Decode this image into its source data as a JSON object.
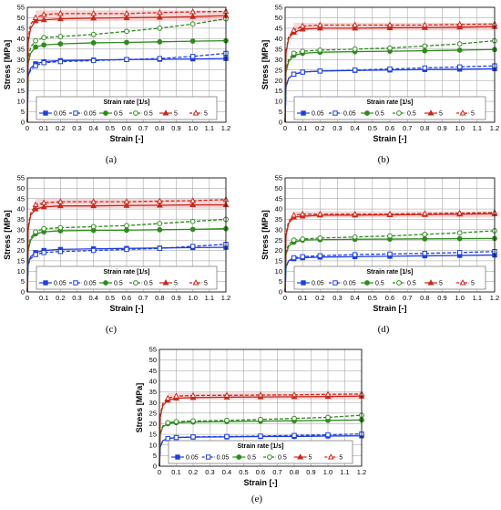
{
  "colors": {
    "blue": "#1f3fe0",
    "green": "#2e8b1e",
    "red": "#c9281c",
    "red_band": "#f3b8b8",
    "grid": "#9a9a9a"
  },
  "legend_labels": [
    "0.05",
    "0.05",
    "0.5",
    "0.5",
    "5",
    "5"
  ],
  "chart_data": [
    {
      "type": "line",
      "panel_label": "(a)",
      "xlabel": "Strain [-]",
      "ylabel": "Stress [MPa]",
      "xlim": [
        0,
        1.2
      ],
      "ylim": [
        0,
        55
      ],
      "grid": true,
      "legend_title": "Strain rate [1/s]",
      "legend_position": "bottom",
      "series": [
        {
          "name": "0.05",
          "color": "blue",
          "marker": "square",
          "filled": true,
          "dashed": false,
          "x": [
            0,
            0.005,
            0.02,
            0.05,
            0.1,
            0.2,
            0.4,
            0.6,
            0.8,
            1.0,
            1.2
          ],
          "y": [
            0,
            22,
            26,
            28,
            29,
            29.5,
            29.8,
            30,
            30.1,
            30.3,
            30.5
          ]
        },
        {
          "name": "0.05",
          "color": "blue",
          "marker": "square",
          "filled": false,
          "dashed": true,
          "x": [
            0,
            0.005,
            0.02,
            0.05,
            0.1,
            0.2,
            0.4,
            0.6,
            0.8,
            1.0,
            1.2
          ],
          "y": [
            0,
            22,
            25,
            27,
            28.5,
            29,
            29.5,
            30,
            30.5,
            31.5,
            33
          ]
        },
        {
          "name": "0.5",
          "color": "green",
          "marker": "circle",
          "filled": true,
          "dashed": false,
          "x": [
            0,
            0.005,
            0.02,
            0.05,
            0.1,
            0.2,
            0.4,
            0.6,
            0.8,
            1.0,
            1.2
          ],
          "y": [
            0,
            28,
            33,
            36,
            37,
            37.5,
            38,
            38.2,
            38.5,
            38.8,
            39
          ]
        },
        {
          "name": "0.5",
          "color": "green",
          "marker": "circle",
          "filled": false,
          "dashed": true,
          "x": [
            0,
            0.005,
            0.02,
            0.05,
            0.1,
            0.2,
            0.4,
            0.6,
            0.8,
            1.0,
            1.2
          ],
          "y": [
            0,
            30,
            36,
            39,
            40.5,
            41,
            42,
            43.5,
            45,
            47,
            49.5
          ]
        },
        {
          "name": "5",
          "color": "red",
          "marker": "triangle",
          "filled": true,
          "dashed": false,
          "x": [
            0,
            0.005,
            0.02,
            0.05,
            0.1,
            0.2,
            0.4,
            0.6,
            0.8,
            1.0,
            1.2
          ],
          "y": [
            0,
            38,
            45,
            48.5,
            49,
            49.5,
            49.8,
            50,
            50.2,
            50.5,
            51
          ]
        },
        {
          "name": "5",
          "color": "red",
          "marker": "triangle",
          "filled": false,
          "dashed": true,
          "x": [
            0,
            0.005,
            0.02,
            0.05,
            0.1,
            0.2,
            0.4,
            0.6,
            0.8,
            1.0,
            1.2
          ],
          "y": [
            0,
            40,
            47,
            50,
            51.5,
            52,
            52,
            52,
            52.5,
            52.8,
            53
          ]
        }
      ]
    },
    {
      "type": "line",
      "panel_label": "(b)",
      "xlabel": "Strain [-]",
      "ylabel": "Stress [MPa]",
      "xlim": [
        0,
        1.2
      ],
      "ylim": [
        0,
        55
      ],
      "grid": true,
      "legend_title": "Strain rate [1/s]",
      "legend_position": "bottom",
      "series": [
        {
          "name": "0.05",
          "color": "blue",
          "marker": "square",
          "filled": true,
          "dashed": false,
          "x": [
            0,
            0.005,
            0.02,
            0.05,
            0.1,
            0.2,
            0.4,
            0.6,
            0.8,
            1.0,
            1.2
          ],
          "y": [
            0,
            17,
            21,
            23,
            24,
            24.5,
            24.8,
            25,
            25.2,
            25.4,
            25.6
          ]
        },
        {
          "name": "0.05",
          "color": "blue",
          "marker": "square",
          "filled": false,
          "dashed": true,
          "x": [
            0,
            0.005,
            0.02,
            0.05,
            0.1,
            0.2,
            0.4,
            0.6,
            0.8,
            1.0,
            1.2
          ],
          "y": [
            0,
            17,
            21,
            23,
            24,
            24.5,
            25,
            25.5,
            26,
            26.5,
            27
          ]
        },
        {
          "name": "0.5",
          "color": "green",
          "marker": "circle",
          "filled": true,
          "dashed": false,
          "x": [
            0,
            0.005,
            0.02,
            0.05,
            0.1,
            0.2,
            0.4,
            0.6,
            0.8,
            1.0,
            1.2
          ],
          "y": [
            0,
            24,
            29,
            32,
            33,
            33.5,
            33.8,
            34,
            34.2,
            34.5,
            34.8
          ]
        },
        {
          "name": "0.5",
          "color": "green",
          "marker": "circle",
          "filled": false,
          "dashed": true,
          "x": [
            0,
            0.005,
            0.02,
            0.05,
            0.1,
            0.2,
            0.4,
            0.6,
            0.8,
            1.0,
            1.2
          ],
          "y": [
            0,
            25,
            30,
            33,
            34,
            34.5,
            35,
            35.5,
            36.5,
            37.5,
            39
          ]
        },
        {
          "name": "5",
          "color": "red",
          "marker": "triangle",
          "filled": true,
          "dashed": false,
          "x": [
            0,
            0.005,
            0.02,
            0.05,
            0.1,
            0.2,
            0.4,
            0.6,
            0.8,
            1.0,
            1.2
          ],
          "y": [
            0,
            33,
            40,
            43,
            44.5,
            45,
            45,
            45.2,
            45.3,
            45.5,
            45.8
          ]
        },
        {
          "name": "5",
          "color": "red",
          "marker": "triangle",
          "filled": false,
          "dashed": true,
          "x": [
            0,
            0.005,
            0.02,
            0.05,
            0.1,
            0.2,
            0.4,
            0.6,
            0.8,
            1.0,
            1.2
          ],
          "y": [
            0,
            34,
            41,
            44,
            46,
            46.5,
            46.5,
            46.5,
            46.5,
            46.8,
            47
          ]
        }
      ]
    },
    {
      "type": "line",
      "panel_label": "(c)",
      "xlabel": "Strain [-]",
      "ylabel": "Stress [MPa]",
      "xlim": [
        0,
        1.2
      ],
      "ylim": [
        0,
        55
      ],
      "grid": true,
      "legend_title": "Strain rate [1/s]",
      "legend_position": "bottom",
      "series": [
        {
          "name": "0.05",
          "color": "blue",
          "marker": "square",
          "filled": true,
          "dashed": false,
          "x": [
            0,
            0.005,
            0.02,
            0.05,
            0.1,
            0.2,
            0.4,
            0.6,
            0.8,
            1.0,
            1.2
          ],
          "y": [
            0,
            14,
            17,
            19,
            20,
            20.5,
            20.8,
            21,
            21.2,
            21.4,
            21.5
          ]
        },
        {
          "name": "0.05",
          "color": "blue",
          "marker": "square",
          "filled": false,
          "dashed": true,
          "x": [
            0,
            0.005,
            0.02,
            0.05,
            0.1,
            0.2,
            0.4,
            0.6,
            0.8,
            1.0,
            1.2
          ],
          "y": [
            0,
            13,
            16,
            18,
            19,
            19.5,
            20,
            20.5,
            21,
            22,
            23
          ]
        },
        {
          "name": "0.5",
          "color": "green",
          "marker": "circle",
          "filled": true,
          "dashed": false,
          "x": [
            0,
            0.005,
            0.02,
            0.05,
            0.1,
            0.2,
            0.4,
            0.6,
            0.8,
            1.0,
            1.2
          ],
          "y": [
            0,
            20,
            25,
            28,
            29,
            29.5,
            29.7,
            29.8,
            30,
            30.2,
            30.5
          ]
        },
        {
          "name": "0.5",
          "color": "green",
          "marker": "circle",
          "filled": false,
          "dashed": true,
          "x": [
            0,
            0.005,
            0.02,
            0.05,
            0.1,
            0.2,
            0.4,
            0.6,
            0.8,
            1.0,
            1.2
          ],
          "y": [
            0,
            21,
            26,
            29,
            30.5,
            31,
            31.5,
            32,
            33,
            34,
            35
          ]
        },
        {
          "name": "5",
          "color": "red",
          "marker": "triangle",
          "filled": true,
          "dashed": false,
          "x": [
            0,
            0.005,
            0.02,
            0.05,
            0.1,
            0.2,
            0.4,
            0.6,
            0.8,
            1.0,
            1.2
          ],
          "y": [
            0,
            30,
            37,
            40,
            41,
            41.5,
            41.5,
            41.7,
            41.8,
            42,
            42
          ]
        },
        {
          "name": "5",
          "color": "red",
          "marker": "triangle",
          "filled": false,
          "dashed": true,
          "x": [
            0,
            0.005,
            0.02,
            0.05,
            0.1,
            0.2,
            0.4,
            0.6,
            0.8,
            1.0,
            1.2
          ],
          "y": [
            0,
            31,
            38,
            42,
            43,
            43.5,
            43.5,
            43.5,
            43.8,
            44,
            44.5
          ]
        }
      ]
    },
    {
      "type": "line",
      "panel_label": "(d)",
      "xlabel": "Strain [-]",
      "ylabel": "Stress [MPa]",
      "xlim": [
        0,
        1.2
      ],
      "ylim": [
        0,
        55
      ],
      "grid": true,
      "legend_title": "Strain rate [1/s]",
      "legend_position": "bottom",
      "series": [
        {
          "name": "0.05",
          "color": "blue",
          "marker": "square",
          "filled": true,
          "dashed": false,
          "x": [
            0,
            0.005,
            0.02,
            0.05,
            0.1,
            0.2,
            0.4,
            0.6,
            0.8,
            1.0,
            1.2
          ],
          "y": [
            0,
            12,
            15,
            16,
            16.5,
            16.8,
            17,
            17.2,
            17.4,
            17.6,
            17.8
          ]
        },
        {
          "name": "0.05",
          "color": "blue",
          "marker": "square",
          "filled": false,
          "dashed": true,
          "x": [
            0,
            0.005,
            0.02,
            0.05,
            0.1,
            0.2,
            0.4,
            0.6,
            0.8,
            1.0,
            1.2
          ],
          "y": [
            0,
            12,
            15,
            16.5,
            17,
            17.5,
            18,
            18.3,
            18.6,
            19,
            19.5
          ]
        },
        {
          "name": "0.5",
          "color": "green",
          "marker": "circle",
          "filled": true,
          "dashed": false,
          "x": [
            0,
            0.005,
            0.02,
            0.05,
            0.1,
            0.2,
            0.4,
            0.6,
            0.8,
            1.0,
            1.2
          ],
          "y": [
            0,
            18,
            22,
            24,
            25,
            25.2,
            25.4,
            25.5,
            25.6,
            25.7,
            25.8
          ]
        },
        {
          "name": "0.5",
          "color": "green",
          "marker": "circle",
          "filled": false,
          "dashed": true,
          "x": [
            0,
            0.005,
            0.02,
            0.05,
            0.1,
            0.2,
            0.4,
            0.6,
            0.8,
            1.0,
            1.2
          ],
          "y": [
            0,
            19,
            23,
            25,
            25.5,
            26,
            26.5,
            27,
            27.8,
            28.5,
            29.5
          ]
        },
        {
          "name": "5",
          "color": "red",
          "marker": "triangle",
          "filled": true,
          "dashed": false,
          "x": [
            0,
            0.005,
            0.02,
            0.05,
            0.1,
            0.2,
            0.4,
            0.6,
            0.8,
            1.0,
            1.2
          ],
          "y": [
            0,
            27,
            33,
            36,
            36.5,
            37,
            37,
            37.2,
            37.3,
            37.5,
            37.7
          ]
        },
        {
          "name": "5",
          "color": "red",
          "marker": "triangle",
          "filled": false,
          "dashed": true,
          "x": [
            0,
            0.005,
            0.02,
            0.05,
            0.1,
            0.2,
            0.4,
            0.6,
            0.8,
            1.0,
            1.2
          ],
          "y": [
            0,
            28,
            34,
            37,
            37.5,
            37.5,
            37.5,
            37.5,
            37.8,
            38,
            38.3
          ]
        }
      ]
    },
    {
      "type": "line",
      "panel_label": "(e)",
      "xlabel": "Strain [-]",
      "ylabel": "Stress [MPa]",
      "xlim": [
        0,
        1.2
      ],
      "ylim": [
        0,
        55
      ],
      "grid": true,
      "legend_title": "Strain rate [1/s]",
      "legend_position": "bottom",
      "series": [
        {
          "name": "0.05",
          "color": "blue",
          "marker": "square",
          "filled": true,
          "dashed": false,
          "x": [
            0,
            0.005,
            0.02,
            0.05,
            0.1,
            0.2,
            0.4,
            0.6,
            0.8,
            1.0,
            1.2
          ],
          "y": [
            0,
            9,
            12,
            13,
            13.5,
            13.7,
            13.8,
            14,
            14,
            14.2,
            14.3
          ]
        },
        {
          "name": "0.05",
          "color": "blue",
          "marker": "square",
          "filled": false,
          "dashed": true,
          "x": [
            0,
            0.005,
            0.02,
            0.05,
            0.1,
            0.2,
            0.4,
            0.6,
            0.8,
            1.0,
            1.2
          ],
          "y": [
            0,
            9,
            12,
            13,
            13.5,
            13.8,
            14,
            14.2,
            14.5,
            14.8,
            15.2
          ]
        },
        {
          "name": "0.5",
          "color": "green",
          "marker": "circle",
          "filled": true,
          "dashed": false,
          "x": [
            0,
            0.005,
            0.02,
            0.05,
            0.1,
            0.2,
            0.4,
            0.6,
            0.8,
            1.0,
            1.2
          ],
          "y": [
            0,
            15,
            18.5,
            20,
            20.5,
            20.8,
            21,
            21.2,
            21.4,
            21.6,
            21.8
          ]
        },
        {
          "name": "0.5",
          "color": "green",
          "marker": "circle",
          "filled": false,
          "dashed": true,
          "x": [
            0,
            0.005,
            0.02,
            0.05,
            0.1,
            0.2,
            0.4,
            0.6,
            0.8,
            1.0,
            1.2
          ],
          "y": [
            0,
            15,
            19,
            20.5,
            21,
            21.3,
            21.6,
            22,
            22.5,
            23,
            24
          ]
        },
        {
          "name": "5",
          "color": "red",
          "marker": "triangle",
          "filled": true,
          "dashed": false,
          "x": [
            0,
            0.005,
            0.02,
            0.05,
            0.1,
            0.2,
            0.4,
            0.6,
            0.8,
            1.0,
            1.2
          ],
          "y": [
            0,
            23,
            28.5,
            31,
            32,
            32.3,
            32.5,
            32.6,
            32.7,
            32.8,
            33
          ]
        },
        {
          "name": "5",
          "color": "red",
          "marker": "triangle",
          "filled": false,
          "dashed": true,
          "x": [
            0,
            0.005,
            0.02,
            0.05,
            0.1,
            0.2,
            0.4,
            0.6,
            0.8,
            1.0,
            1.2
          ],
          "y": [
            0,
            24,
            29.5,
            32,
            33,
            33.3,
            33.4,
            33.5,
            33.6,
            33.8,
            34
          ]
        }
      ]
    }
  ]
}
